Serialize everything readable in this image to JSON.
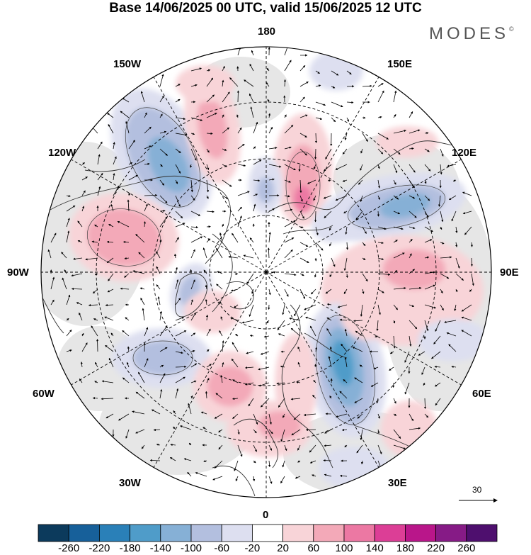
{
  "title": "Base 14/06/2025 00 UTC, valid 15/06/2025 12 UTC",
  "brand": "MODES",
  "brand_mark": "©",
  "longitude_labels": {
    "lon_180": "180",
    "lon_150W": "150W",
    "lon_150E": "150E",
    "lon_120W": "120W",
    "lon_120E": "120E",
    "lon_90W": "90W",
    "lon_90E": "90E",
    "lon_60W": "60W",
    "lon_60E": "60E",
    "lon_30W": "30W",
    "lon_30E": "30E",
    "lon_0": "0"
  },
  "reference_vector": {
    "value": "30"
  },
  "colorbar": {
    "labels": [
      "-260",
      "-220",
      "-180",
      "-140",
      "-100",
      "-60",
      "-20",
      "20",
      "60",
      "100",
      "140",
      "180",
      "220",
      "260"
    ],
    "colors": [
      "#0c3a5c",
      "#17609a",
      "#2a80b8",
      "#4f9cc9",
      "#86b0d6",
      "#b3bfdf",
      "#dddff0",
      "#ffffff",
      "#f8d4d8",
      "#f3a9b8",
      "#ec78a3",
      "#dc3e96",
      "#b9168a",
      "#861b86",
      "#4e0f6e"
    ]
  },
  "anomaly_colors": {
    "pos_weak": "#f8d4d8",
    "pos_mid": "#f3a9b8",
    "pos_strong": "#ec78a3",
    "neg_weak": "#dddff0",
    "neg_mid": "#b3bfdf",
    "neg_strong": "#86b0d6",
    "neg_vstrong": "#4f9cc9",
    "neg_max": "#2a80b8",
    "land_bg": "#e6e6e6"
  },
  "map": {
    "projection": "north polar stereographic",
    "field": "geopotential height anomaly with wind vectors",
    "grid": "dashed"
  }
}
